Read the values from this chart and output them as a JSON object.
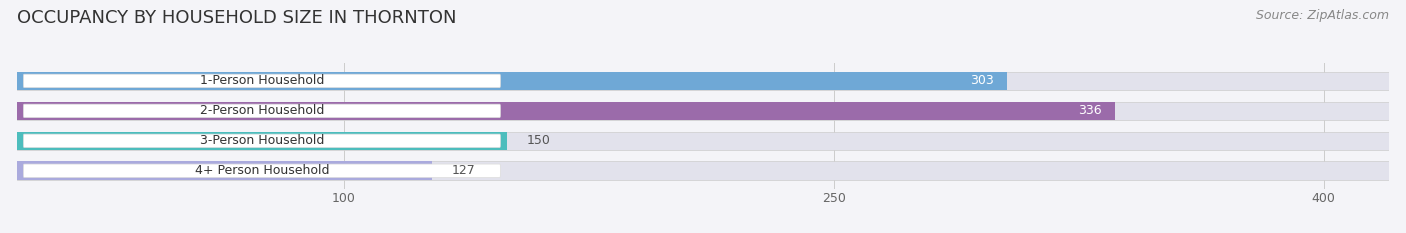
{
  "title": "OCCUPANCY BY HOUSEHOLD SIZE IN THORNTON",
  "source": "Source: ZipAtlas.com",
  "categories": [
    "1-Person Household",
    "2-Person Household",
    "3-Person Household",
    "4+ Person Household"
  ],
  "values": [
    303,
    336,
    150,
    127
  ],
  "bar_colors": [
    "#6fa8d6",
    "#9b6baa",
    "#4dbdbd",
    "#aaaadd"
  ],
  "bar_bg_color": "#e2e2ec",
  "label_bg_color": "#ffffff",
  "xlim": [
    0,
    420
  ],
  "xticks": [
    100,
    250,
    400
  ],
  "title_fontsize": 13,
  "source_fontsize": 9,
  "label_fontsize": 9,
  "value_fontsize": 9,
  "background_color": "#f4f4f8"
}
